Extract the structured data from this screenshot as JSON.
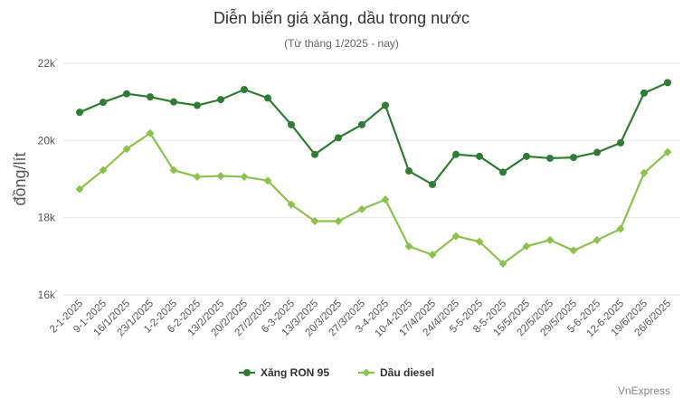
{
  "chart_data": {
    "type": "line",
    "title": "Diễn biến giá xăng, dầu trong nước",
    "subtitle": "(Từ tháng 1/2025 - nay)",
    "ylabel": "đồng/lít",
    "xlabel": "",
    "ylim": [
      16000,
      22000
    ],
    "yticks": [
      {
        "value": 16000,
        "label": "16k"
      },
      {
        "value": 18000,
        "label": "18k"
      },
      {
        "value": 20000,
        "label": "20k"
      },
      {
        "value": 22000,
        "label": "22k"
      }
    ],
    "grid": true,
    "legend": "bottom-center",
    "categories": [
      "2-1-2025",
      "9-1-2025",
      "16/1/2025",
      "23/1/2025",
      "1-2-2025",
      "6-2-2025",
      "13/2/2025",
      "20/2/2025",
      "27/2/2025",
      "6-3-2025",
      "13/3/2025",
      "20/3/2025",
      "27/3/2025",
      "3-4-2025",
      "10-4-2025",
      "17/4/2025",
      "24/4/2025",
      "5-5-2025",
      "8-5-2025",
      "15/5/2025",
      "22/5/2025",
      "29/5/2025",
      "5-6-2025",
      "12-6-2025",
      "19/6/2025",
      "26/6/2025"
    ],
    "series": [
      {
        "name": "Xăng RON 95",
        "color": "#2e7d32",
        "marker": "circle",
        "values": [
          20730,
          20990,
          21210,
          21130,
          21000,
          20910,
          21060,
          21320,
          21100,
          20410,
          19640,
          20070,
          20410,
          20910,
          19210,
          18860,
          19640,
          19590,
          19180,
          19590,
          19540,
          19560,
          19690,
          19940,
          21230,
          21500
        ]
      },
      {
        "name": "Dầu diesel",
        "color": "#8bc34a",
        "marker": "diamond",
        "values": [
          18740,
          19230,
          19780,
          20190,
          19230,
          19060,
          19080,
          19060,
          18960,
          18340,
          17910,
          17910,
          18220,
          18470,
          17260,
          17040,
          17520,
          17380,
          16810,
          17260,
          17420,
          17150,
          17420,
          17710,
          19160,
          19700
        ]
      }
    ]
  },
  "footer": {
    "source": "VnExpress"
  }
}
